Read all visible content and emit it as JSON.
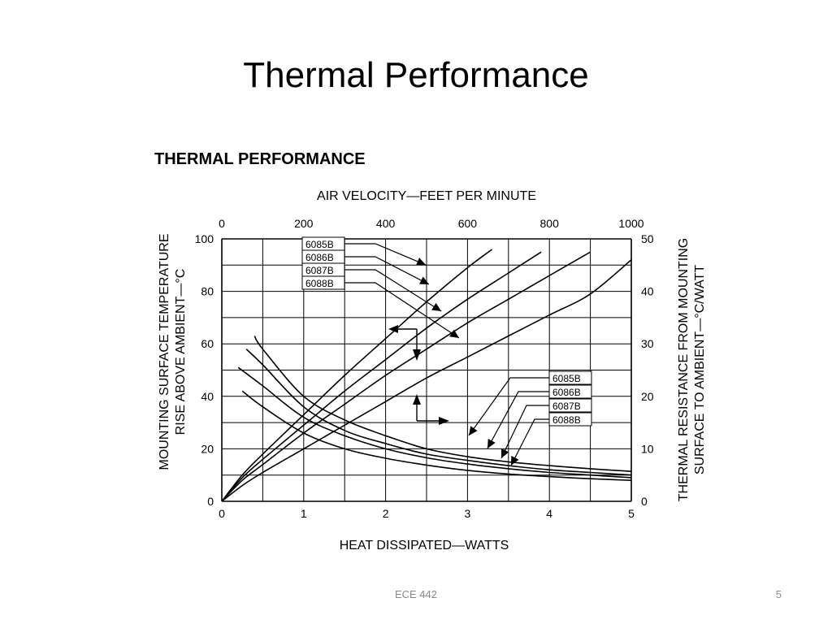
{
  "slide": {
    "title": "Thermal Performance",
    "footer": "ECE 442",
    "page_number": "5"
  },
  "chart_data": {
    "type": "line",
    "title": "THERMAL PERFORMANCE",
    "xlabel": "HEAT DISSIPATED—WATTS",
    "x2label": "AIR VELOCITY—FEET PER MINUTE",
    "ylabel": [
      "MOUNTING SURFACE TEMPERATURE",
      "RISE ABOVE AMBIENT—°C"
    ],
    "y2label": [
      "THERMAL RESISTANCE FROM MOUNTING",
      "SURFACE TO AMBIENT—°C/WATT"
    ],
    "xlim": [
      0,
      5
    ],
    "x2lim": [
      0,
      1000
    ],
    "ylim": [
      0,
      100
    ],
    "y2lim": [
      0,
      50
    ],
    "x_ticks": [
      "0",
      "1",
      "2",
      "3",
      "4",
      "5"
    ],
    "x2_ticks": [
      "0",
      "200",
      "400",
      "600",
      "800",
      "1000"
    ],
    "y_ticks": [
      "0",
      "20",
      "40",
      "60",
      "80",
      "100"
    ],
    "y2_ticks": [
      "0",
      "10",
      "20",
      "30",
      "40",
      "50"
    ],
    "grid": true,
    "series": [
      {
        "name": "6085B",
        "axis": "x-y",
        "x": [
          0,
          0.25,
          0.5,
          1,
          1.5,
          2,
          2.5,
          3,
          3.3
        ],
        "y": [
          0,
          10,
          18,
          33,
          48,
          62,
          76,
          89,
          96
        ]
      },
      {
        "name": "6086B",
        "axis": "x-y",
        "x": [
          0,
          0.25,
          0.5,
          1,
          1.5,
          2,
          2.5,
          3,
          3.5,
          3.9
        ],
        "y": [
          0,
          9,
          16,
          29,
          42,
          54,
          66,
          77,
          87,
          95
        ]
      },
      {
        "name": "6087B",
        "axis": "x-y",
        "x": [
          0,
          0.25,
          0.5,
          1,
          1.5,
          2,
          2.5,
          3,
          3.5,
          4,
          4.5
        ],
        "y": [
          0,
          8,
          14,
          26,
          37,
          48,
          58,
          68,
          77,
          86,
          95
        ]
      },
      {
        "name": "6088B",
        "axis": "x-y",
        "x": [
          0,
          0.25,
          0.5,
          1,
          1.5,
          2,
          2.5,
          3,
          3.5,
          4,
          4.5,
          5
        ],
        "y": [
          0,
          6,
          11,
          20,
          29,
          38,
          47,
          55,
          63,
          71,
          79,
          92
        ]
      },
      {
        "name": "6085B",
        "axis": "x2-y2",
        "x": [
          80,
          100,
          200,
          300,
          400,
          500,
          600,
          700,
          800,
          900,
          1000
        ],
        "y": [
          31.5,
          29,
          20,
          15.5,
          12.5,
          10,
          8.5,
          7.5,
          6.8,
          6.2,
          5.7
        ]
      },
      {
        "name": "6086B",
        "axis": "x2-y2",
        "x": [
          60,
          100,
          200,
          300,
          400,
          500,
          600,
          700,
          800,
          900,
          1000
        ],
        "y": [
          29,
          26,
          18,
          13.5,
          11,
          9,
          7.8,
          6.8,
          6,
          5.5,
          5
        ]
      },
      {
        "name": "6087B",
        "axis": "x2-y2",
        "x": [
          40,
          100,
          200,
          300,
          400,
          500,
          600,
          700,
          800,
          900,
          1000
        ],
        "y": [
          25.5,
          22,
          16,
          12.5,
          10,
          8.3,
          7.1,
          6.2,
          5.5,
          5,
          4.5
        ]
      },
      {
        "name": "6088B",
        "axis": "x2-y2",
        "x": [
          50,
          100,
          200,
          300,
          400,
          500,
          600,
          700,
          800,
          900,
          1000
        ],
        "y": [
          21,
          18,
          13,
          10,
          8.2,
          6.9,
          5.9,
          5.2,
          4.7,
          4.3,
          4
        ]
      }
    ]
  }
}
